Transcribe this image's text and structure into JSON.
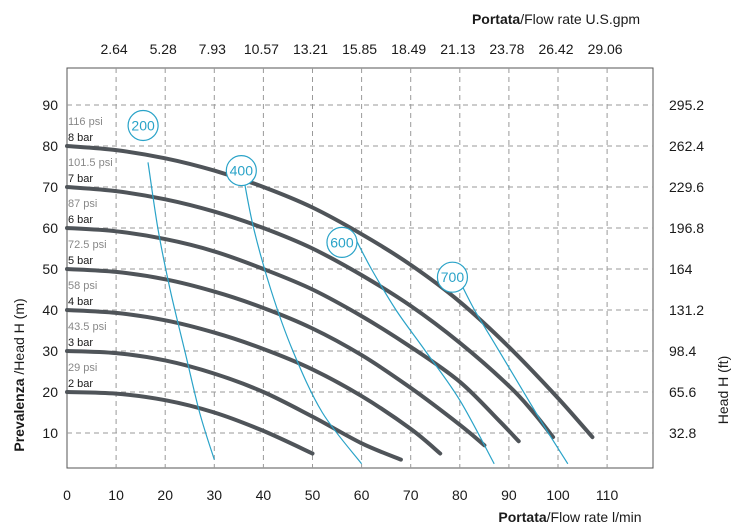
{
  "chart_data": {
    "type": "line",
    "top_title": {
      "bold": "Portata",
      "rest": "/Flow rate U.S.gpm"
    },
    "bottom_title": {
      "bold": "Portata",
      "rest": "/Flow rate  l/min"
    },
    "left_title": {
      "bold": "Prevalenza",
      "rest": " /Head H (m)"
    },
    "right_title": "Head H (ft)",
    "x_ticks": [
      "0",
      "10",
      "20",
      "30",
      "40",
      "50",
      "60",
      "70",
      "80",
      "90",
      "100",
      "110"
    ],
    "x_top_ticks": [
      "2.64",
      "5.28",
      "7.93",
      "10.57",
      "13.21",
      "15.85",
      "18.49",
      "21.13",
      "23.78",
      "26.42",
      "29.06"
    ],
    "y_ticks": [
      "10",
      "20",
      "30",
      "40",
      "50",
      "60",
      "70",
      "80",
      "90"
    ],
    "y_right_ticks": [
      "32.8",
      "65.6",
      "98.4",
      "131.2",
      "164",
      "196.8",
      "229.6",
      "262.4",
      "295.2"
    ],
    "xlim": [
      0,
      118
    ],
    "ylim": [
      0,
      100
    ],
    "grid": true,
    "colors": {
      "pressure_curve": "#4f5459",
      "consumption_curve": "#2aa3c8",
      "grid": "#9a9a9a"
    },
    "pressure_curves": [
      {
        "bar": "2 bar",
        "psi": "29 psi",
        "points": [
          [
            0,
            20
          ],
          [
            10,
            19.6
          ],
          [
            20,
            18
          ],
          [
            30,
            15
          ],
          [
            40,
            10.5
          ],
          [
            50,
            5
          ]
        ]
      },
      {
        "bar": "3 bar",
        "psi": "43.5 psi",
        "points": [
          [
            0,
            30
          ],
          [
            10,
            29.5
          ],
          [
            20,
            27.7
          ],
          [
            30,
            24.5
          ],
          [
            40,
            20
          ],
          [
            50,
            14
          ],
          [
            60,
            7.5
          ],
          [
            68,
            3.5
          ]
        ]
      },
      {
        "bar": "4 bar",
        "psi": "58 psi",
        "points": [
          [
            0,
            40
          ],
          [
            10,
            39.3
          ],
          [
            20,
            37.5
          ],
          [
            30,
            34.5
          ],
          [
            40,
            30.5
          ],
          [
            50,
            25.5
          ],
          [
            60,
            19
          ],
          [
            70,
            11
          ],
          [
            76,
            5
          ]
        ]
      },
      {
        "bar": "5 bar",
        "psi": "72.5 psi",
        "points": [
          [
            0,
            50
          ],
          [
            10,
            49.3
          ],
          [
            20,
            47.5
          ],
          [
            30,
            44.5
          ],
          [
            40,
            40.5
          ],
          [
            50,
            35.5
          ],
          [
            60,
            29
          ],
          [
            70,
            21
          ],
          [
            80,
            12
          ],
          [
            85,
            7
          ]
        ]
      },
      {
        "bar": "6 bar",
        "psi": "87 psi",
        "points": [
          [
            0,
            60
          ],
          [
            10,
            59.2
          ],
          [
            20,
            57.3
          ],
          [
            30,
            54.3
          ],
          [
            40,
            50
          ],
          [
            50,
            45
          ],
          [
            60,
            38.5
          ],
          [
            70,
            31
          ],
          [
            80,
            22.5
          ],
          [
            88,
            13
          ],
          [
            92,
            8
          ]
        ]
      },
      {
        "bar": "7 bar",
        "psi": "101.5 psi",
        "points": [
          [
            0,
            70
          ],
          [
            10,
            69
          ],
          [
            20,
            67
          ],
          [
            30,
            64
          ],
          [
            40,
            60
          ],
          [
            50,
            55
          ],
          [
            60,
            48.5
          ],
          [
            70,
            41
          ],
          [
            80,
            32
          ],
          [
            90,
            21.5
          ],
          [
            95,
            15
          ],
          [
            99,
            9
          ]
        ]
      },
      {
        "bar": "8 bar",
        "psi": "116 psi",
        "points": [
          [
            0,
            80
          ],
          [
            10,
            79
          ],
          [
            20,
            77
          ],
          [
            30,
            74
          ],
          [
            40,
            70
          ],
          [
            50,
            65
          ],
          [
            60,
            58.5
          ],
          [
            70,
            51
          ],
          [
            80,
            42
          ],
          [
            90,
            31
          ],
          [
            100,
            18.5
          ],
          [
            107,
            9
          ]
        ]
      }
    ],
    "consumption_curves": [
      {
        "label": "200",
        "points": [
          [
            16.5,
            76
          ],
          [
            18.5,
            60
          ],
          [
            21,
            45
          ],
          [
            24,
            30
          ],
          [
            27,
            15
          ],
          [
            30,
            3.5
          ]
        ]
      },
      {
        "label": "400",
        "points": [
          [
            36,
            72
          ],
          [
            38,
            60
          ],
          [
            41.5,
            45
          ],
          [
            46,
            30
          ],
          [
            52,
            15
          ],
          [
            60,
            2.5
          ]
        ]
      },
      {
        "label": "600",
        "points": [
          [
            58.5,
            58
          ],
          [
            62,
            50
          ],
          [
            67,
            40
          ],
          [
            73,
            30
          ],
          [
            80,
            18
          ],
          [
            87,
            2.5
          ]
        ]
      },
      {
        "label": "700",
        "points": [
          [
            80,
            47
          ],
          [
            83,
            40
          ],
          [
            87,
            32
          ],
          [
            92,
            22
          ],
          [
            97,
            12
          ],
          [
            102,
            2.5
          ]
        ]
      }
    ],
    "consumption_labels": [
      {
        "label": "200",
        "x": 15.5,
        "y": 85
      },
      {
        "label": "400",
        "x": 35.5,
        "y": 74
      },
      {
        "label": "600",
        "x": 56,
        "y": 56.5
      },
      {
        "label": "700",
        "x": 78.5,
        "y": 48
      }
    ]
  }
}
